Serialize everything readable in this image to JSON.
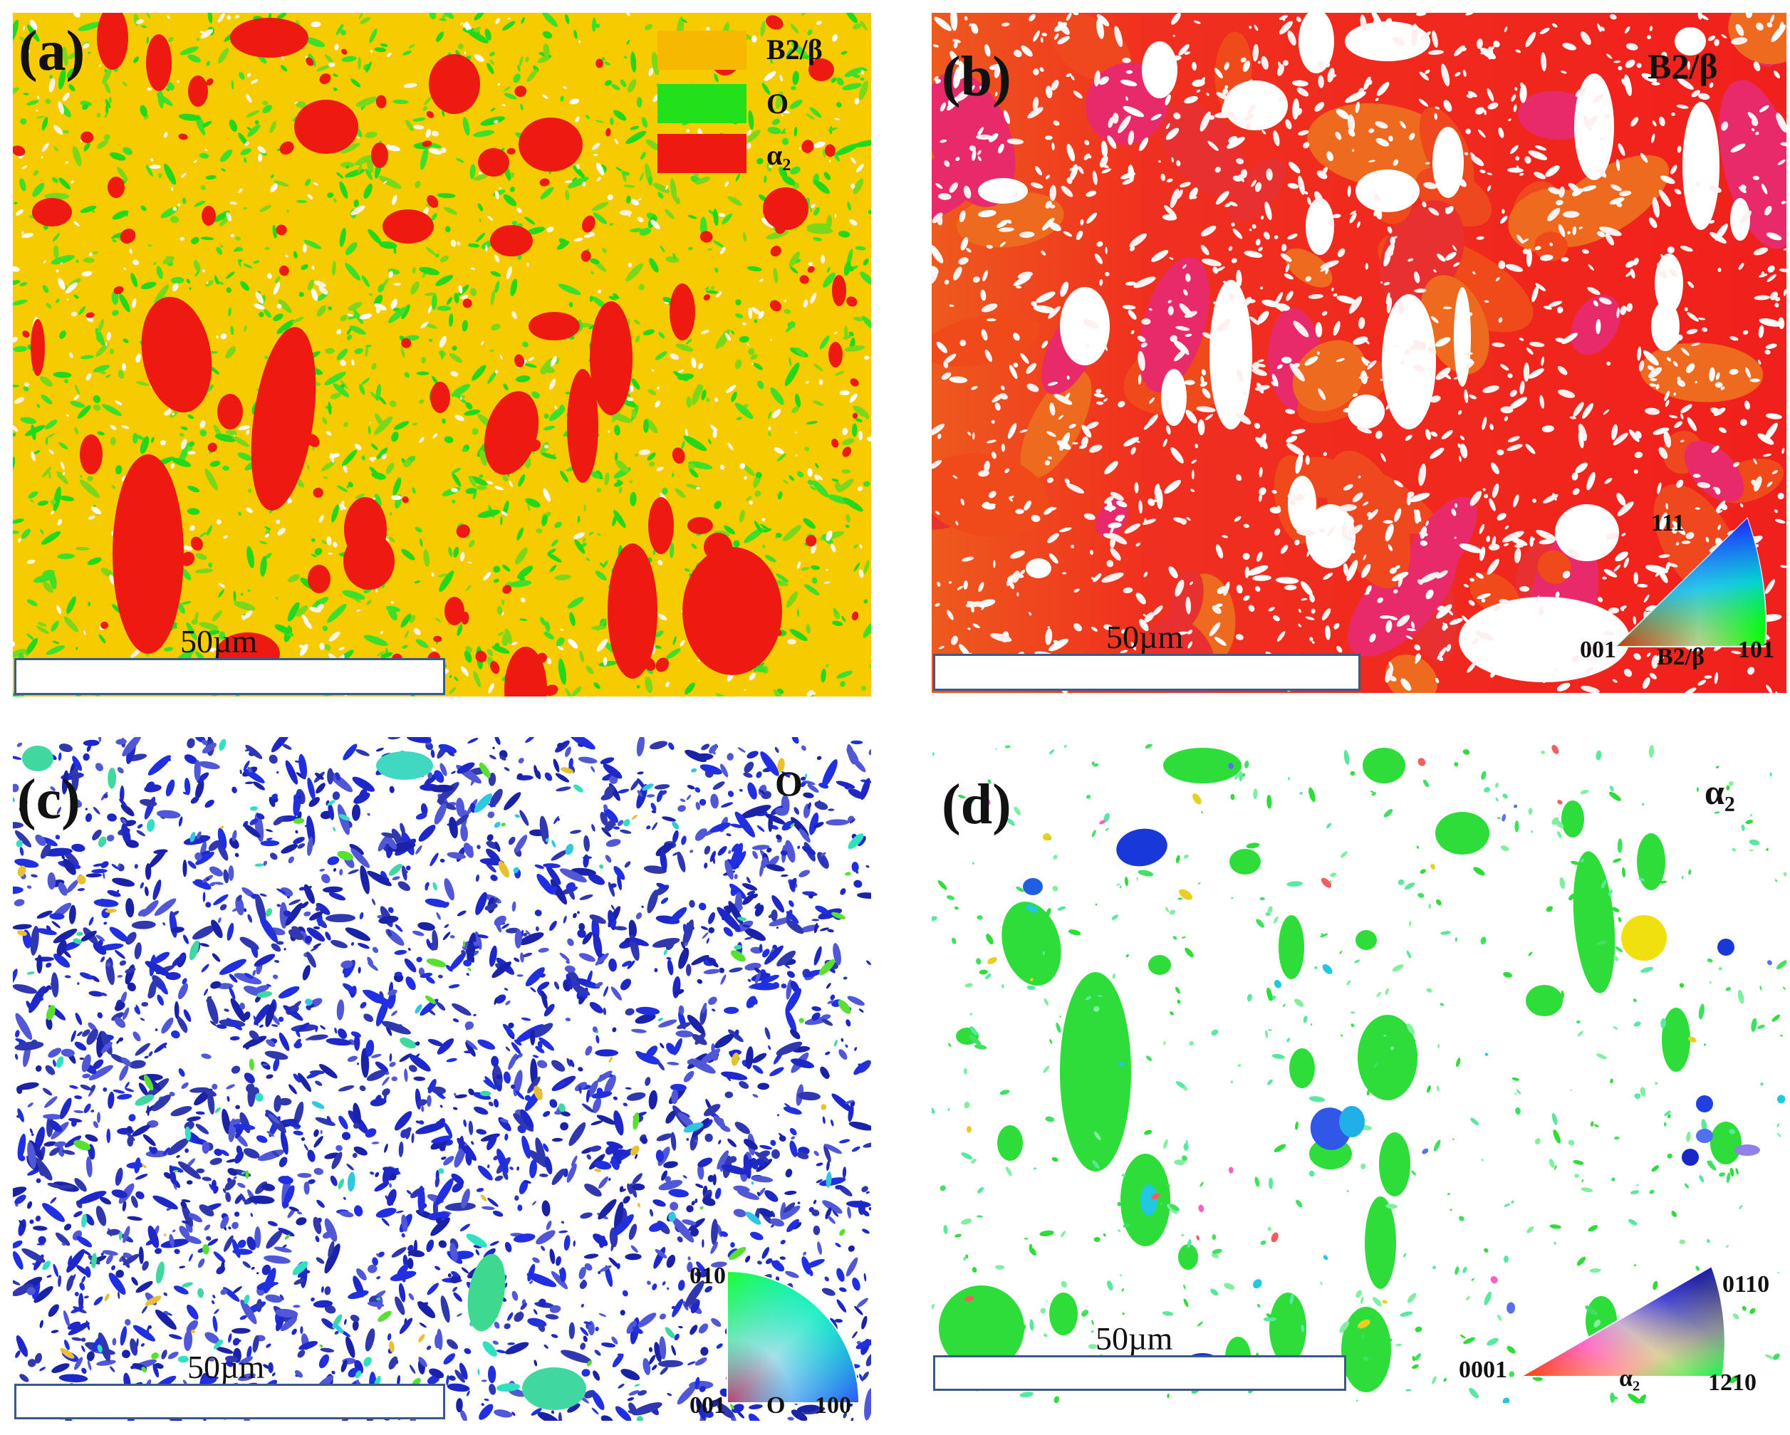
{
  "panels": [
    {
      "id": "a",
      "label": "(a)",
      "scale_text": "50µm",
      "legend": [
        {
          "text": "B2/β",
          "color": "#f6b800"
        },
        {
          "text": "O",
          "color": "#22e01a"
        },
        {
          "text": "α₂",
          "color": "#ee1a10"
        }
      ]
    },
    {
      "id": "b",
      "label": "(b)",
      "phase": "B2/β",
      "scale_text": "50µm",
      "ipf": {
        "corner_top": "111",
        "corner_left": "001",
        "corner_right": "101",
        "phase": "B2/β"
      }
    },
    {
      "id": "c",
      "label": "(c)",
      "phase": "O",
      "scale_text": "50µm",
      "ipf": {
        "corner_top": "010",
        "corner_left": "001",
        "corner_right": "100",
        "phase": "O"
      }
    },
    {
      "id": "d",
      "label": "(d)",
      "phase": "α₂",
      "scale_text": "50µm",
      "ipf": {
        "corner_top": "0110",
        "corner_left": "0001",
        "corner_right": "1210",
        "phase": "α₂"
      }
    }
  ],
  "colors": {
    "b2_matrix": "#f6cc00",
    "o_phase": "#22d81a",
    "alpha2": "#ee1a10",
    "b_map_red": "#f0281e",
    "c_map_blue": "#1e28c8",
    "d_map_green": "#2edc3a",
    "scalebar_border": "#3b5a8c"
  }
}
